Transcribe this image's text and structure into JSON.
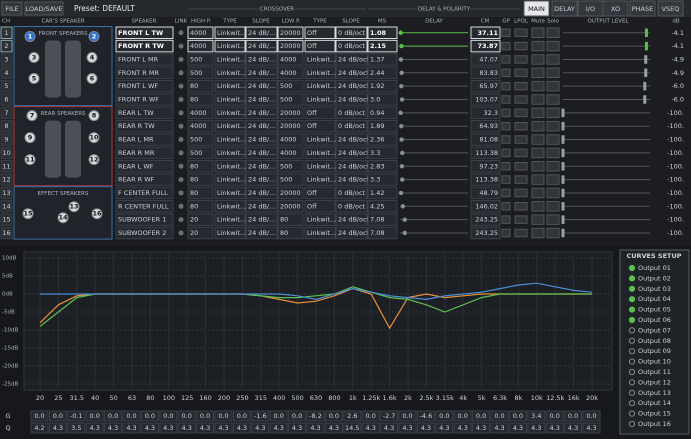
{
  "toolbar": {
    "file": "FILE",
    "load_save": "LOAD/SAVE",
    "preset": "Preset: DEFAULT"
  },
  "tabs": [
    "MAIN",
    "DELAY",
    "I/O",
    "XO",
    "PHASE",
    "VSEQ"
  ],
  "sections": {
    "crossover": "CROSSOVER",
    "delay": "DELAY & POLARITY"
  },
  "columns": [
    "CH",
    "CAR'S SPEAKER",
    "SPEAKER",
    "LINK",
    "HIGH P.",
    "TYPE",
    "SLOPE",
    "LOW P.",
    "TYPE",
    "SLOPE",
    "MS",
    "DELAY",
    "CM",
    "GP",
    "LPOL",
    "Mute",
    "Solo",
    "OUTPUT LEVEL",
    "dB"
  ],
  "groups": [
    {
      "title": "FRONT SPEAKERS",
      "speakers": [
        "1",
        "2",
        "3",
        "4",
        "5",
        "6"
      ]
    },
    {
      "title": "REAR SPEAKERS",
      "speakers": [
        "7",
        "8",
        "9",
        "10",
        "11",
        "12"
      ]
    },
    {
      "title": "EFFECT SPEAKERS",
      "speakers": [
        "13",
        "14",
        "15",
        "16"
      ]
    }
  ],
  "channels": [
    {
      "ch": "1",
      "name": "FRONT L TW",
      "hp": "4000",
      "hp_type": "Linkwit...",
      "hp_slope": "24 dB/...",
      "lp": "20000",
      "lp_type": "Off",
      "lp_slope": "0 dB/oct",
      "ms": "1.08",
      "cm": "37.11",
      "level": "-4.1"
    },
    {
      "ch": "2",
      "name": "FRONT R TW",
      "hp": "4000",
      "hp_type": "Linkwit...",
      "hp_slope": "24 dB/...",
      "lp": "20000",
      "lp_type": "Off",
      "lp_slope": "0 dB/oct",
      "ms": "2.15",
      "cm": "73.87",
      "level": "-4.1"
    },
    {
      "ch": "3",
      "name": "FRONT L MR",
      "hp": "500",
      "hp_type": "Linkwit...",
      "hp_slope": "24 dB/...",
      "lp": "4000",
      "lp_type": "Linkwit...",
      "lp_slope": "24 dB/oct",
      "ms": "1.37",
      "cm": "47.07",
      "level": "-4.9"
    },
    {
      "ch": "4",
      "name": "FRONT R MR",
      "hp": "500",
      "hp_type": "Linkwit...",
      "hp_slope": "24 dB/...",
      "lp": "4000",
      "lp_type": "Linkwit...",
      "lp_slope": "24 dB/oct",
      "ms": "2.44",
      "cm": "83.83",
      "level": "-4.9"
    },
    {
      "ch": "5",
      "name": "FRONT L WF",
      "hp": "80",
      "hp_type": "Linkwit...",
      "hp_slope": "24 dB/...",
      "lp": "500",
      "lp_type": "Linkwit...",
      "lp_slope": "24 dB/oct",
      "ms": "1.92",
      "cm": "65.97",
      "level": "-6.0"
    },
    {
      "ch": "6",
      "name": "FRONT R WF",
      "hp": "80",
      "hp_type": "Linkwit...",
      "hp_slope": "24 dB/...",
      "lp": "500",
      "lp_type": "Linkwit...",
      "lp_slope": "24 dB/oct",
      "ms": "3.0",
      "cm": "103.07",
      "level": "-6.0"
    },
    {
      "ch": "7",
      "name": "REAR L TW",
      "hp": "4000",
      "hp_type": "Linkwit...",
      "hp_slope": "24 dB/...",
      "lp": "20000",
      "lp_type": "Off",
      "lp_slope": "0 dB/oct",
      "ms": "0.94",
      "cm": "32.3",
      "level": "-100."
    },
    {
      "ch": "8",
      "name": "REAR R TW",
      "hp": "4000",
      "hp_type": "Linkwit...",
      "hp_slope": "24 dB/...",
      "lp": "20000",
      "lp_type": "Off",
      "lp_slope": "0 dB/oct",
      "ms": "1.89",
      "cm": "64.93",
      "level": "-100."
    },
    {
      "ch": "9",
      "name": "REAR L MR",
      "hp": "500",
      "hp_type": "Linkwit...",
      "hp_slope": "24 dB/...",
      "lp": "4000",
      "lp_type": "Linkwit...",
      "lp_slope": "24 dB/oct",
      "ms": "2.36",
      "cm": "81.08",
      "level": "-100."
    },
    {
      "ch": "10",
      "name": "REAR R MR",
      "hp": "500",
      "hp_type": "Linkwit...",
      "hp_slope": "24 dB/...",
      "lp": "4000",
      "lp_type": "Linkwit...",
      "lp_slope": "24 dB/oct",
      "ms": "3.3",
      "cm": "113.38",
      "level": "-100."
    },
    {
      "ch": "11",
      "name": "REAR L WF",
      "hp": "80",
      "hp_type": "Linkwit...",
      "hp_slope": "24 dB/...",
      "lp": "500",
      "lp_type": "Linkwit...",
      "lp_slope": "24 dB/oct",
      "ms": "2.83",
      "cm": "97.23",
      "level": "-100."
    },
    {
      "ch": "12",
      "name": "REAR R WF",
      "hp": "80",
      "hp_type": "Linkwit...",
      "hp_slope": "24 dB/...",
      "lp": "500",
      "lp_type": "Linkwit...",
      "lp_slope": "24 dB/oct",
      "ms": "3.3",
      "cm": "113.38",
      "level": "-100."
    },
    {
      "ch": "13",
      "name": "F CENTER FULL",
      "hp": "80",
      "hp_type": "Linkwit...",
      "hp_slope": "24 dB/...",
      "lp": "20000",
      "lp_type": "Off",
      "lp_slope": "0 dB/oct",
      "ms": "1.42",
      "cm": "48.79",
      "level": "-100."
    },
    {
      "ch": "14",
      "name": "R CENTER FULL",
      "hp": "80",
      "hp_type": "Linkwit...",
      "hp_slope": "24 dB/...",
      "lp": "20000",
      "lp_type": "Off",
      "lp_slope": "0 dB/oct",
      "ms": "4.25",
      "cm": "146.02",
      "level": "-100."
    },
    {
      "ch": "15",
      "name": "SUBWOOFER 1",
      "hp": "20",
      "hp_type": "Linkwit...",
      "hp_slope": "24 dB/...",
      "lp": "80",
      "lp_type": "Linkwit...",
      "lp_slope": "24 dB/oct",
      "ms": "7.08",
      "cm": "243.25",
      "level": "-100."
    },
    {
      "ch": "16",
      "name": "SUBWOOFER 2",
      "hp": "20",
      "hp_type": "Linkwit...",
      "hp_slope": "24 dB/...",
      "lp": "80",
      "lp_type": "Linkwit...",
      "lp_slope": "24 dB/oct",
      "ms": "7.08",
      "cm": "243.25",
      "level": "-100."
    }
  ],
  "eq": {
    "ylim": [
      -25,
      10
    ],
    "yticks": [
      {
        "value": 10,
        "label": "10dB"
      },
      {
        "value": 5,
        "label": "5dB"
      },
      {
        "value": 0,
        "label": "0dB"
      },
      {
        "value": -5,
        "label": "-5dB"
      },
      {
        "value": -10,
        "label": "-10dB"
      },
      {
        "value": -15,
        "label": "-15dB"
      },
      {
        "value": -20,
        "label": "-20dB"
      },
      {
        "value": -25,
        "label": "-25dB"
      }
    ],
    "bands": [
      "20",
      "25",
      "31.5",
      "40",
      "50",
      "63",
      "80",
      "100",
      "125",
      "160",
      "200",
      "250",
      "315",
      "400",
      "500",
      "630",
      "800",
      "1k",
      "1.25k",
      "1.6k",
      "2k",
      "2.5k",
      "3.15k",
      "4k",
      "5k",
      "6.3k",
      "8k",
      "10k",
      "12.5k",
      "16k",
      "20k"
    ],
    "curves": [
      {
        "color": "#e8903a",
        "values": [
          -8,
          -3,
          -0.5,
          0,
          0,
          0,
          0,
          0,
          0,
          0,
          0,
          0,
          -0.5,
          -1.5,
          -2.5,
          -2,
          -0.5,
          1.5,
          0,
          -9.5,
          -1,
          0,
          -1,
          -0.5,
          0,
          0,
          0,
          0,
          0,
          0,
          0
        ]
      },
      {
        "color": "#5cbf4f",
        "values": [
          -9,
          -5,
          -1,
          0,
          0,
          0,
          0,
          0,
          0,
          0,
          0,
          0,
          -0.5,
          -1,
          -1,
          -0.5,
          0,
          2,
          0.5,
          -1,
          -1.5,
          -3,
          -5,
          -3,
          -1,
          0,
          0,
          0,
          0,
          0,
          0
        ]
      },
      {
        "color": "#4a8fd8",
        "values": [
          0,
          0,
          0,
          0,
          0,
          0,
          0,
          0,
          0,
          0,
          0,
          0,
          0,
          0,
          -0.5,
          -1.5,
          0,
          1.5,
          0.5,
          -0.5,
          -1,
          -1.5,
          -0.5,
          0,
          0.5,
          1.5,
          2.5,
          3,
          2,
          1,
          0.5
        ]
      }
    ],
    "gain_label": "G",
    "q_label": "Q",
    "gain": [
      "0.0",
      "0.0",
      "-0.1",
      "0.0",
      "0.0",
      "0.0",
      "0.0",
      "0.0",
      "0.0",
      "0.0",
      "0.0",
      "0.0",
      "-1.6",
      "0.0",
      "0.0",
      "-8.2",
      "0.0",
      "2.6",
      "0.0",
      "-2.7",
      "0.0",
      "-4.6",
      "0.0",
      "0.0",
      "0.0",
      "0.0",
      "0.0",
      "3.4",
      "0.0",
      "0.0",
      "0.0"
    ],
    "q": [
      "4.2",
      "4.3",
      "3.5",
      "4.3",
      "4.3",
      "4.3",
      "4.3",
      "4.3",
      "4.3",
      "4.3",
      "4.3",
      "4.3",
      "4.3",
      "4.3",
      "4.3",
      "4.3",
      "4.3",
      "14.5",
      "4.3",
      "4.3",
      "4.3",
      "4.3",
      "4.3",
      "4.3",
      "4.3",
      "4.3",
      "4.3",
      "4.3",
      "4.3",
      "4.3",
      "4.3"
    ]
  },
  "curves_setup": {
    "title": "CURVES SETUP",
    "outputs": [
      "Output 01",
      "Output 02",
      "Output 03",
      "Output 04",
      "Output 05",
      "Output 06",
      "Output 07",
      "Output 08",
      "Output 09",
      "Output 10",
      "Output 11",
      "Output 12",
      "Output 13",
      "Output 14",
      "Output 15",
      "Output 16"
    ],
    "active": [
      true,
      true,
      true,
      true,
      true,
      true,
      false,
      false,
      false,
      false,
      false,
      false,
      false,
      false,
      false,
      false
    ]
  }
}
